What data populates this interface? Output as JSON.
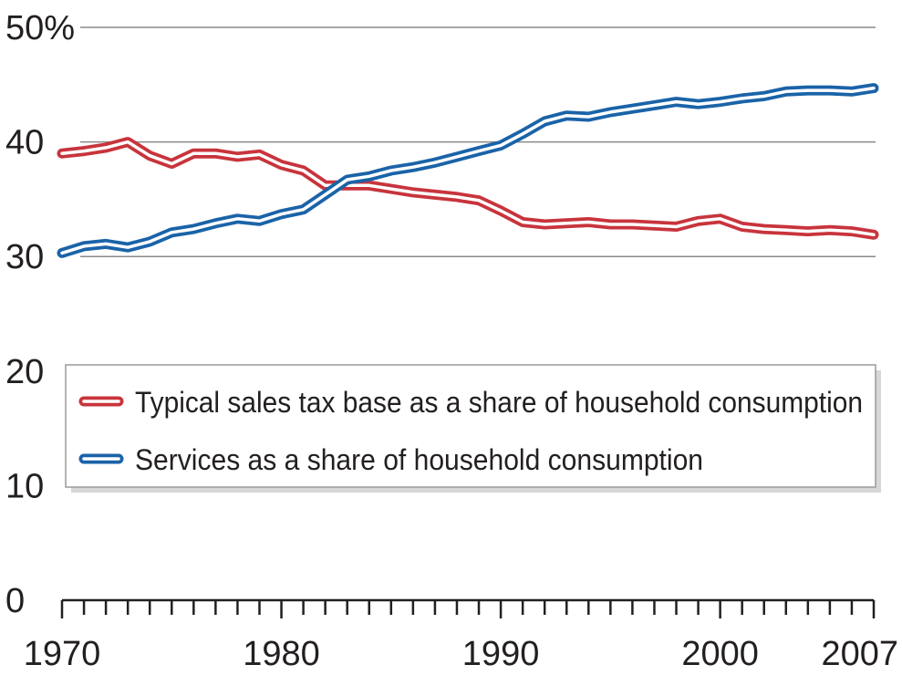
{
  "chart_data": {
    "type": "line",
    "x": [
      1970,
      1971,
      1972,
      1973,
      1974,
      1975,
      1976,
      1977,
      1978,
      1979,
      1980,
      1981,
      1982,
      1983,
      1984,
      1985,
      1986,
      1987,
      1988,
      1989,
      1990,
      1991,
      1992,
      1993,
      1994,
      1995,
      1996,
      1997,
      1998,
      1999,
      2000,
      2001,
      2002,
      2003,
      2004,
      2005,
      2006,
      2007
    ],
    "series": [
      {
        "name": "Typical sales tax base as a share of household consumption",
        "color": "#c8343c",
        "values": [
          39.0,
          39.2,
          39.5,
          40.0,
          38.8,
          38.1,
          39.0,
          39.0,
          38.7,
          38.9,
          38.0,
          37.5,
          36.2,
          36.2,
          36.2,
          35.9,
          35.6,
          35.4,
          35.2,
          34.9,
          34.0,
          33.0,
          32.8,
          32.9,
          33.0,
          32.8,
          32.8,
          32.7,
          32.6,
          33.1,
          33.3,
          32.6,
          32.4,
          32.3,
          32.2,
          32.3,
          32.2,
          31.9
        ]
      },
      {
        "name": "Services as a share of household consumption",
        "color": "#1a63a8",
        "values": [
          30.3,
          30.9,
          31.1,
          30.8,
          31.3,
          32.1,
          32.4,
          32.9,
          33.3,
          33.1,
          33.7,
          34.1,
          35.4,
          36.7,
          37.0,
          37.5,
          37.8,
          38.2,
          38.7,
          39.2,
          39.7,
          40.7,
          41.8,
          42.3,
          42.2,
          42.6,
          42.9,
          43.2,
          43.5,
          43.3,
          43.5,
          43.8,
          44.0,
          44.4,
          44.5,
          44.5,
          44.4,
          44.7
        ]
      }
    ],
    "y_ticks": [
      "0",
      "10",
      "20",
      "30",
      "40",
      "50%"
    ],
    "x_ticks": [
      "1970",
      "1980",
      "1990",
      "2000",
      "2007"
    ],
    "ylim": [
      0,
      50
    ],
    "xlim": [
      1970,
      2007
    ],
    "legend_placement": "center-right",
    "grid": true
  }
}
